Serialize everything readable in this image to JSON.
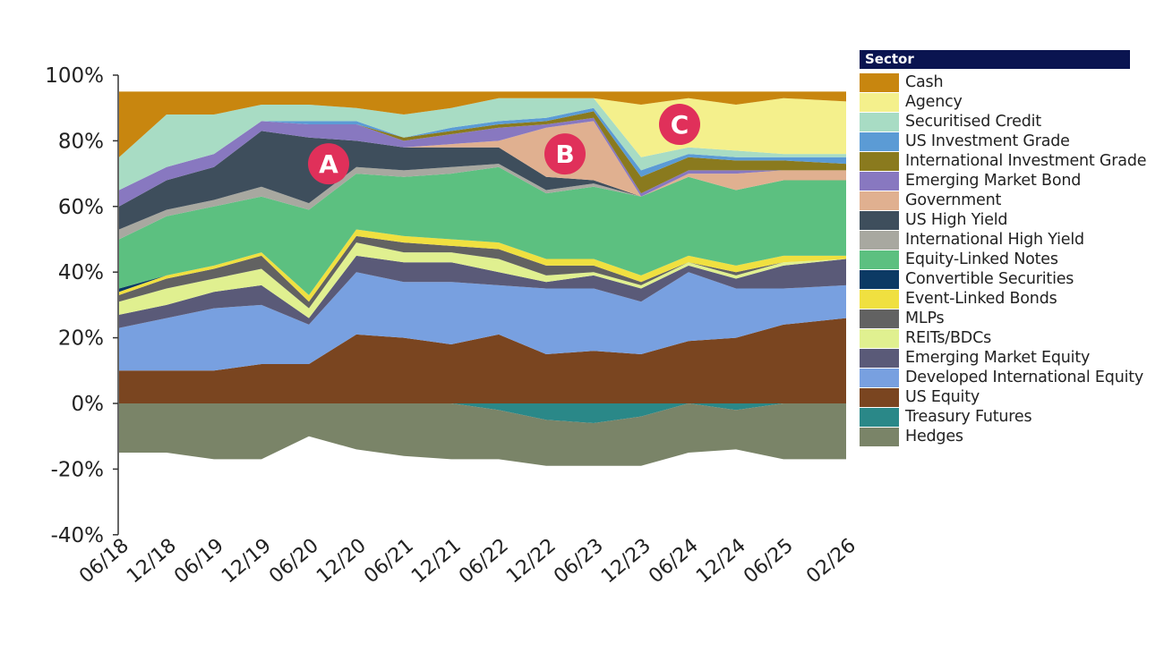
{
  "chart_data": {
    "type": "area",
    "stacked": true,
    "title": "",
    "xlabel": "",
    "ylabel": "",
    "ylim": [
      -40,
      100
    ],
    "yticks": [
      "-40%",
      "-20%",
      "0%",
      "20%",
      "40%",
      "60%",
      "80%",
      "100%"
    ],
    "ytick_values": [
      -40,
      -20,
      0,
      20,
      40,
      60,
      80,
      100
    ],
    "x": [
      "06/18",
      "12/18",
      "06/19",
      "12/19",
      "06/20",
      "12/20",
      "06/21",
      "12/21",
      "06/22",
      "12/22",
      "06/23",
      "12/23",
      "06/24",
      "12/24",
      "06/25",
      "02/26"
    ],
    "xticks": [
      "06/18",
      "12/18",
      "06/19",
      "12/19",
      "06/20",
      "12/20",
      "06/21",
      "12/21",
      "06/22",
      "12/22",
      "06/23",
      "12/23",
      "06/24",
      "12/24",
      "06/25",
      "02/26"
    ],
    "legend_title": "Sector",
    "legend_position": "right",
    "series": [
      {
        "name": "US Equity",
        "color": "#7a4520",
        "values": [
          10,
          10,
          10,
          12,
          12,
          21,
          20,
          18,
          21,
          15,
          16,
          15,
          19,
          20,
          24,
          26
        ]
      },
      {
        "name": "Developed International Equity",
        "color": "#78a0e0",
        "values": [
          13,
          16,
          19,
          18,
          12,
          19,
          17,
          19,
          15,
          20,
          19,
          16,
          21,
          15,
          11,
          10
        ]
      },
      {
        "name": "Emerging Market Equity",
        "color": "#5a5a78",
        "values": [
          4,
          4,
          5,
          6,
          2,
          5,
          6,
          6,
          4,
          2,
          4,
          4,
          2,
          3,
          7,
          8
        ]
      },
      {
        "name": "REITs/BDCs",
        "color": "#e0f090",
        "values": [
          4,
          5,
          4,
          5,
          3,
          4,
          3,
          3,
          4,
          2,
          1,
          1,
          1,
          1,
          1,
          0
        ]
      },
      {
        "name": "MLPs",
        "color": "#626262",
        "values": [
          2,
          3,
          3,
          4,
          2,
          2,
          3,
          2,
          3,
          3,
          2,
          1,
          0,
          1,
          0,
          0
        ]
      },
      {
        "name": "Event-Linked Bonds",
        "color": "#f0e040",
        "values": [
          1,
          1,
          1,
          1,
          2,
          2,
          2,
          2,
          2,
          2,
          2,
          2,
          2,
          2,
          2,
          1
        ]
      },
      {
        "name": "Convertible Securities",
        "color": "#0c3a64",
        "values": [
          1,
          0,
          0,
          0,
          0,
          0,
          0,
          0,
          0,
          0,
          0,
          0,
          0,
          0,
          0,
          0
        ]
      },
      {
        "name": "Equity-Linked Notes",
        "color": "#5cc080",
        "values": [
          15,
          18,
          18,
          17,
          26,
          17,
          18,
          20,
          23,
          20,
          22,
          24,
          24,
          23,
          23,
          23
        ]
      },
      {
        "name": "International High Yield",
        "color": "#a8a8a0",
        "values": [
          3,
          2,
          2,
          3,
          2,
          2,
          2,
          2,
          1,
          1,
          1,
          0,
          0,
          0,
          0,
          0
        ]
      },
      {
        "name": "US High Yield",
        "color": "#3e4e5c",
        "values": [
          7,
          9,
          10,
          17,
          20,
          8,
          7,
          6,
          5,
          4,
          1,
          0,
          0,
          0,
          0,
          0
        ]
      },
      {
        "name": "Government",
        "color": "#e0b090",
        "values": [
          0,
          0,
          0,
          0,
          0,
          0,
          0,
          1,
          2,
          15,
          18,
          0,
          1,
          5,
          3,
          3
        ]
      },
      {
        "name": "Emerging Market Bond",
        "color": "#8878c0",
        "values": [
          5,
          4,
          4,
          3,
          4,
          5,
          2,
          3,
          4,
          1,
          1,
          1,
          1,
          1,
          0,
          0
        ]
      },
      {
        "name": "International Investment Grade",
        "color": "#8a7a1e",
        "values": [
          0,
          0,
          0,
          0,
          0,
          0,
          1,
          1,
          1,
          1,
          2,
          5,
          4,
          3,
          3,
          2
        ]
      },
      {
        "name": "US Investment Grade",
        "color": "#5b9bd5",
        "values": [
          0,
          0,
          0,
          0,
          1,
          1,
          0,
          1,
          1,
          1,
          1,
          2,
          1,
          1,
          1,
          2
        ]
      },
      {
        "name": "Securitised Credit",
        "color": "#a8dcc4",
        "values": [
          10,
          16,
          12,
          5,
          5,
          4,
          7,
          6,
          7,
          6,
          3,
          4,
          2,
          2,
          1,
          1
        ]
      },
      {
        "name": "Agency",
        "color": "#f4f08c",
        "values": [
          0,
          0,
          0,
          0,
          0,
          0,
          0,
          0,
          0,
          0,
          0,
          16,
          15,
          14,
          17,
          16
        ]
      },
      {
        "name": "Cash",
        "color": "#c8860f",
        "values": [
          20,
          7,
          7,
          4,
          4,
          5,
          7,
          5,
          2,
          2,
          2,
          4,
          2,
          4,
          2,
          3
        ]
      },
      {
        "name": "Treasury Futures",
        "color": "#2a8888",
        "values": [
          0,
          0,
          0,
          0,
          0,
          0,
          0,
          0,
          -2,
          -5,
          -6,
          -4,
          0,
          -2,
          0,
          0
        ]
      },
      {
        "name": "Hedges",
        "color": "#7a8468",
        "values": [
          -15,
          -15,
          -17,
          -17,
          -10,
          -14,
          -16,
          -17,
          -15,
          -14,
          -13,
          -15,
          -15,
          -12,
          -17,
          -17
        ]
      }
    ],
    "legend_order": [
      "Cash",
      "Agency",
      "Securitised Credit",
      "US Investment Grade",
      "International Investment Grade",
      "Emerging Market Bond",
      "Government",
      "US High Yield",
      "International High Yield",
      "Equity-Linked Notes",
      "Convertible Securities",
      "Event-Linked Bonds",
      "MLPs",
      "REITs/BDCs",
      "Emerging Market Equity",
      "Developed International Equity",
      "US Equity",
      "Treasury Futures",
      "Hedges"
    ],
    "annotations": [
      {
        "label": "A",
        "x": "06/20",
        "y": 73
      },
      {
        "label": "B",
        "x": "12/22",
        "y": 76
      },
      {
        "label": "C",
        "x": "12/23",
        "y": 85
      }
    ],
    "annotation_color": "#e0305a"
  }
}
